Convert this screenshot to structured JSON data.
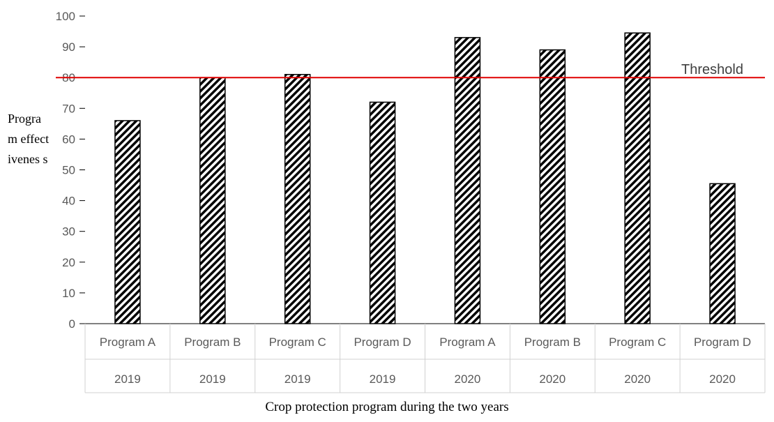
{
  "chart_data": {
    "type": "bar",
    "categories": [
      {
        "program": "Program A",
        "year": "2019"
      },
      {
        "program": "Program B",
        "year": "2019"
      },
      {
        "program": "Program C",
        "year": "2019"
      },
      {
        "program": "Program D",
        "year": "2019"
      },
      {
        "program": "Program A",
        "year": "2020"
      },
      {
        "program": "Program B",
        "year": "2020"
      },
      {
        "program": "Program C",
        "year": "2020"
      },
      {
        "program": "Program D",
        "year": "2020"
      }
    ],
    "values": [
      66,
      80,
      81,
      72,
      93,
      89,
      94.5,
      45.5
    ],
    "ylim": [
      0,
      100
    ],
    "yticks": [
      0,
      10,
      20,
      30,
      40,
      50,
      60,
      70,
      80,
      90,
      100
    ],
    "ylabel": "Program effectivenes s",
    "xlabel": "Crop protection program during the two years",
    "threshold": {
      "value": 80,
      "label": "Threshold",
      "color": "#e00000"
    },
    "bar_fill": "diagonal-hatch",
    "grid": false,
    "legend": "none"
  }
}
